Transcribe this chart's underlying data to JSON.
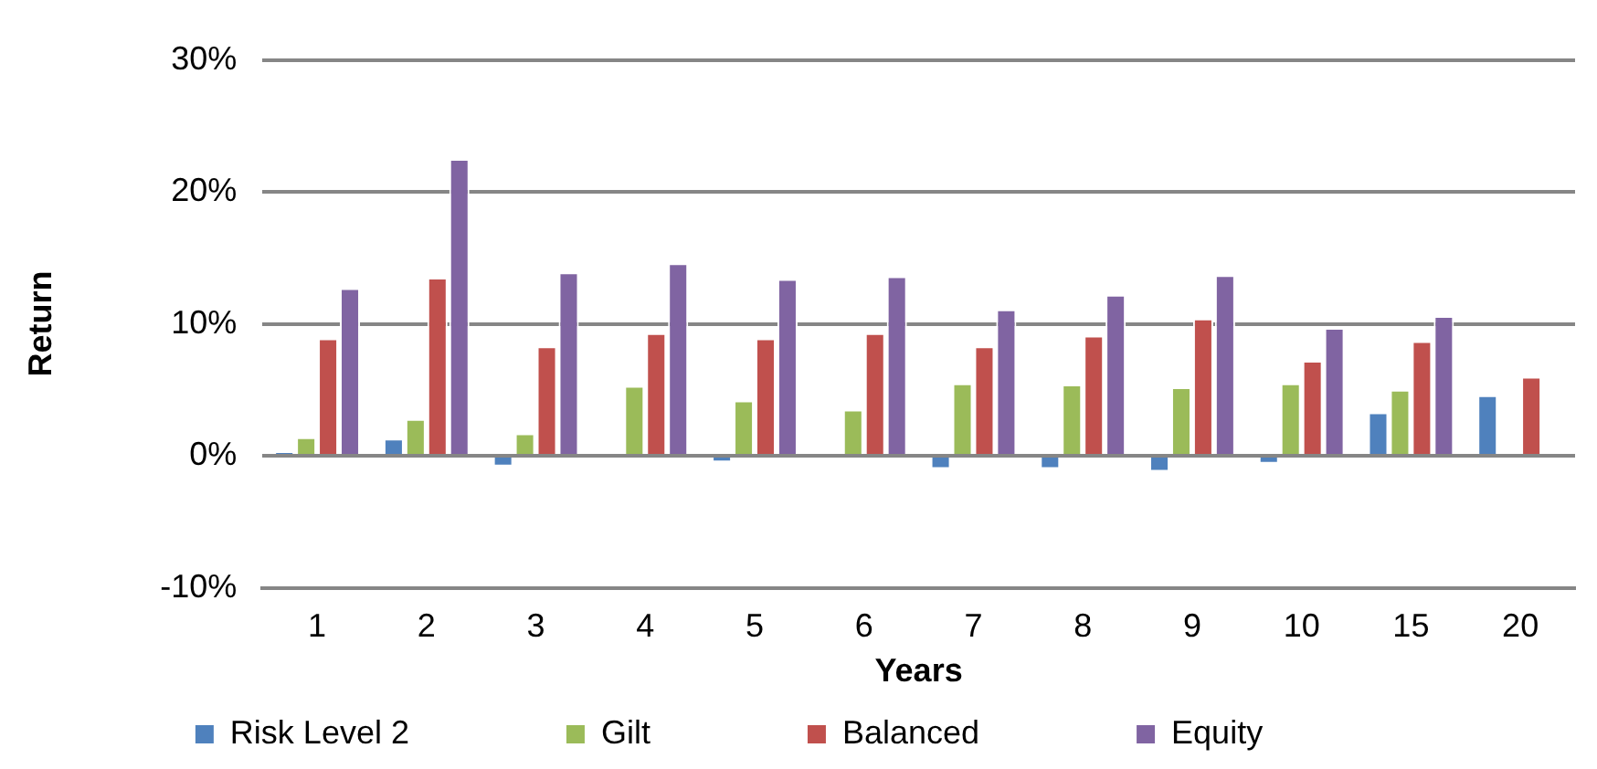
{
  "chart_data": {
    "type": "bar",
    "xlabel": "Years",
    "ylabel": "Return",
    "categories": [
      "1",
      "2",
      "3",
      "4",
      "5",
      "6",
      "7",
      "8",
      "9",
      "10",
      "15",
      "20"
    ],
    "series": [
      {
        "name": "Risk Level 2",
        "color": "#4f81bd",
        "values": [
          0.3,
          1.3,
          -0.8,
          null,
          -0.5,
          null,
          -1.0,
          -1.0,
          -1.2,
          -0.6,
          3.3,
          4.6
        ]
      },
      {
        "name": "Gilt",
        "color": "#9bbb59",
        "values": [
          1.4,
          2.8,
          1.7,
          5.3,
          4.2,
          3.5,
          5.5,
          5.4,
          5.2,
          5.5,
          5.0,
          null
        ]
      },
      {
        "name": "Balanced",
        "color": "#c0504d",
        "values": [
          8.9,
          13.5,
          8.3,
          9.3,
          8.9,
          9.3,
          8.3,
          9.1,
          10.4,
          7.2,
          8.7,
          6.0
        ]
      },
      {
        "name": "Equity",
        "color": "#8064a2",
        "values": [
          12.7,
          22.5,
          13.9,
          14.6,
          13.4,
          13.6,
          11.1,
          12.2,
          13.7,
          9.7,
          10.6,
          null
        ]
      }
    ],
    "ylim": [
      -10,
      30
    ],
    "yticks": [
      {
        "value": -10,
        "label": "-10%"
      },
      {
        "value": 0,
        "label": "0%"
      },
      {
        "value": 10,
        "label": "10%"
      },
      {
        "value": 20,
        "label": "20%"
      },
      {
        "value": 30,
        "label": "30%"
      }
    ],
    "grid": "y",
    "legend": "bottom"
  }
}
